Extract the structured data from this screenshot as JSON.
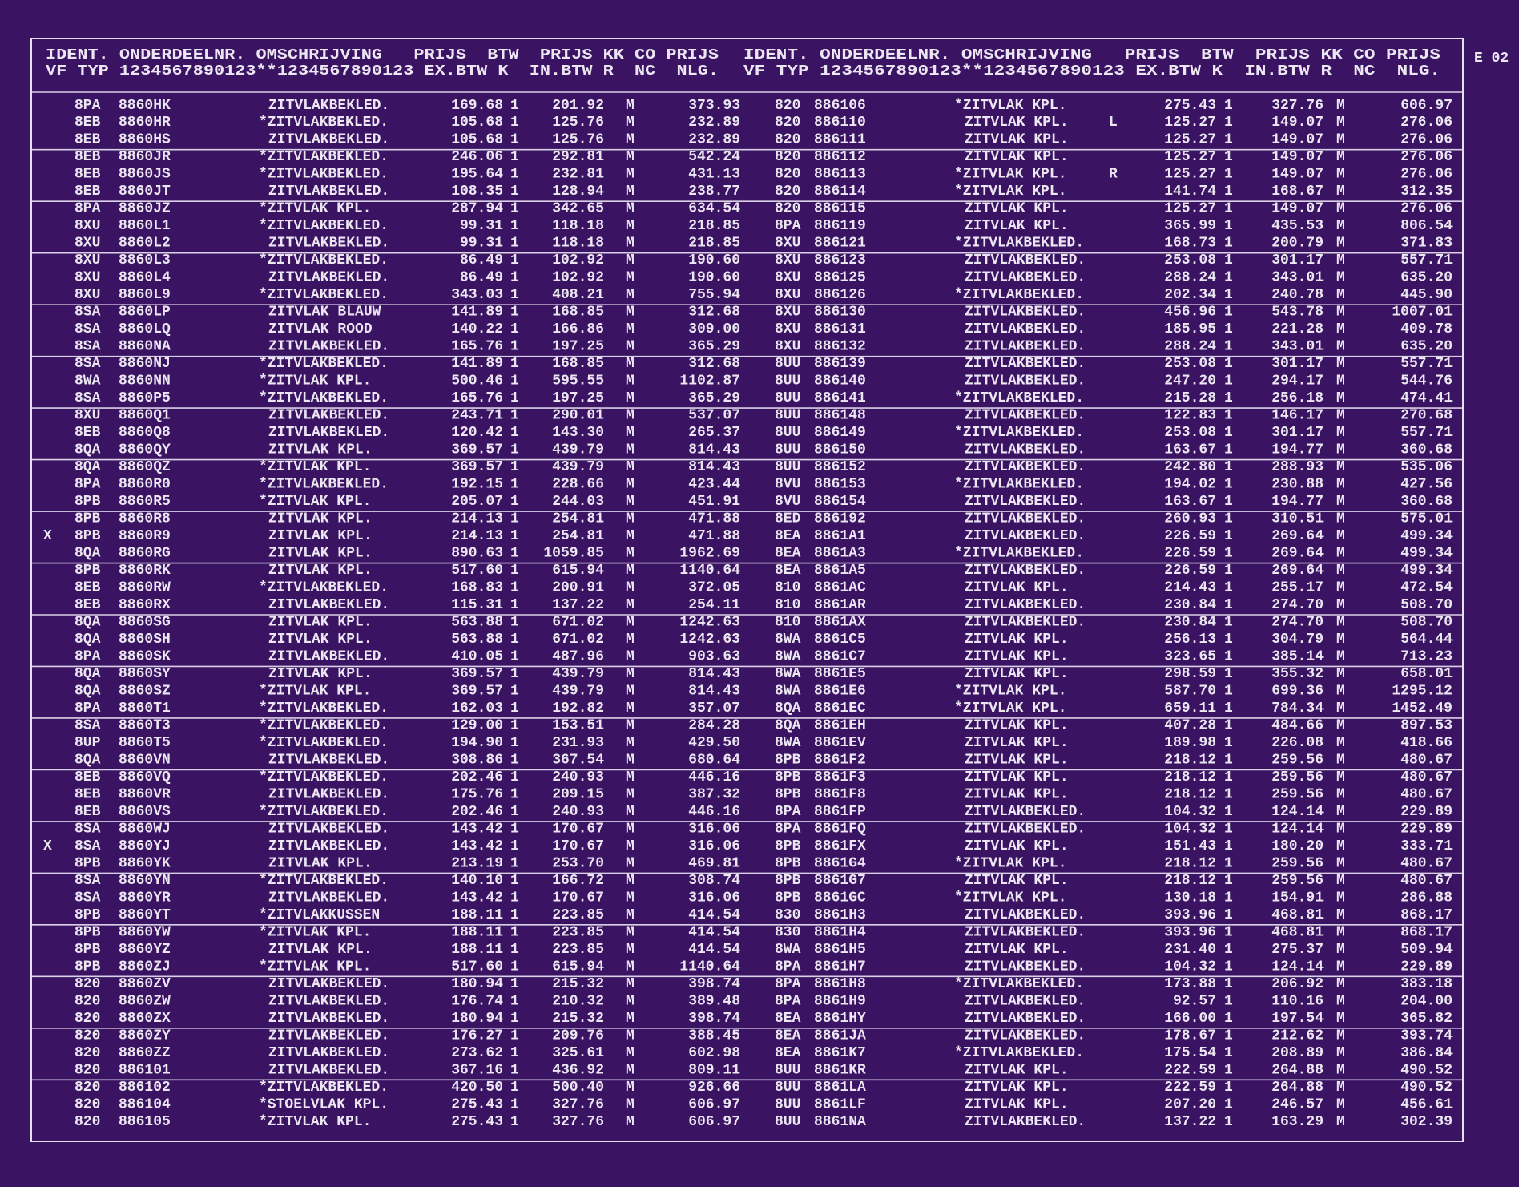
{
  "code": "E 02",
  "left": {
    "header": [
      "IDENT. ONDERDEELNR. OMSCHRIJVING   PRIJS  BTW  PRIJS KK CO PRIJS",
      "VF TYP 1234567890123**1234567890123 EX.BTW K  IN.BTW R  NC  NLG."
    ],
    "rows": [
      [
        "8PA",
        "8860HK",
        "ZITVLAKBEKLED.",
        "169.68",
        "1",
        "201.92",
        "M",
        "373.93"
      ],
      [
        "8EB",
        "8860HR",
        "*ZITVLAKBEKLED.",
        "105.68",
        "1",
        "125.76",
        "M",
        "232.89"
      ],
      [
        "8EB",
        "8860HS",
        "ZITVLAKBEKLED.",
        "105.68",
        "1",
        "125.76",
        "M",
        "232.89"
      ],
      [
        "8EB",
        "8860JR",
        "*ZITVLAKBEKLED.",
        "246.06",
        "1",
        "292.81",
        "M",
        "542.24"
      ],
      [
        "8EB",
        "8860JS",
        "*ZITVLAKBEKLED.",
        "195.64",
        "1",
        "232.81",
        "M",
        "431.13"
      ],
      [
        "8EB",
        "8860JT",
        "ZITVLAKBEKLED.",
        "108.35",
        "1",
        "128.94",
        "M",
        "238.77"
      ],
      [
        "8PA",
        "8860JZ",
        "*ZITVLAK KPL.",
        "287.94",
        "1",
        "342.65",
        "M",
        "634.54"
      ],
      [
        "8XU",
        "8860L1",
        "*ZITVLAKBEKLED.",
        "99.31",
        "1",
        "118.18",
        "M",
        "218.85"
      ],
      [
        "8XU",
        "8860L2",
        "ZITVLAKBEKLED.",
        "99.31",
        "1",
        "118.18",
        "M",
        "218.85"
      ],
      [
        "8XU",
        "8860L3",
        "*ZITVLAKBEKLED.",
        "86.49",
        "1",
        "102.92",
        "M",
        "190.60"
      ],
      [
        "8XU",
        "8860L4",
        "ZITVLAKBEKLED.",
        "86.49",
        "1",
        "102.92",
        "M",
        "190.60"
      ],
      [
        "8XU",
        "8860L9",
        "*ZITVLAKBEKLED.",
        "343.03",
        "1",
        "408.21",
        "M",
        "755.94"
      ],
      [
        "8SA",
        "8860LP",
        "ZITVLAK BLAUW",
        "141.89",
        "1",
        "168.85",
        "M",
        "312.68"
      ],
      [
        "8SA",
        "8860LQ",
        "ZITVLAK ROOD",
        "140.22",
        "1",
        "166.86",
        "M",
        "309.00"
      ],
      [
        "8SA",
        "8860NA",
        "ZITVLAKBEKLED.",
        "165.76",
        "1",
        "197.25",
        "M",
        "365.29"
      ],
      [
        "8SA",
        "8860NJ",
        "*ZITVLAKBEKLED.",
        "141.89",
        "1",
        "168.85",
        "M",
        "312.68"
      ],
      [
        "8WA",
        "8860NN",
        "*ZITVLAK KPL.",
        "500.46",
        "1",
        "595.55",
        "M",
        "1102.87"
      ],
      [
        "8SA",
        "8860P5",
        "*ZITVLAKBEKLED.",
        "165.76",
        "1",
        "197.25",
        "M",
        "365.29"
      ],
      [
        "8XU",
        "8860Q1",
        "ZITVLAKBEKLED.",
        "243.71",
        "1",
        "290.01",
        "M",
        "537.07"
      ],
      [
        "8EB",
        "8860Q8",
        "ZITVLAKBEKLED.",
        "120.42",
        "1",
        "143.30",
        "M",
        "265.37"
      ],
      [
        "8QA",
        "8860QY",
        "ZITVLAK KPL.",
        "369.57",
        "1",
        "439.79",
        "M",
        "814.43"
      ],
      [
        "8QA",
        "8860QZ",
        "*ZITVLAK KPL.",
        "369.57",
        "1",
        "439.79",
        "M",
        "814.43"
      ],
      [
        "8PA",
        "8860R0",
        "*ZITVLAKBEKLED.",
        "192.15",
        "1",
        "228.66",
        "M",
        "423.44"
      ],
      [
        "8PB",
        "8860R5",
        "*ZITVLAK KPL.",
        "205.07",
        "1",
        "244.03",
        "M",
        "451.91"
      ],
      [
        "8PB",
        "8860R8",
        "ZITVLAK KPL.",
        "214.13",
        "1",
        "254.81",
        "M",
        "471.88"
      ],
      [
        "8PB",
        "8860R9",
        "ZITVLAK KPL.",
        "214.13",
        "1",
        "254.81",
        "M",
        "471.88",
        "X"
      ],
      [
        "8QA",
        "8860RG",
        "ZITVLAK KPL.",
        "890.63",
        "1",
        "1059.85",
        "M",
        "1962.69"
      ],
      [
        "8PB",
        "8860RK",
        "ZITVLAK KPL.",
        "517.60",
        "1",
        "615.94",
        "M",
        "1140.64"
      ],
      [
        "8EB",
        "8860RW",
        "*ZITVLAKBEKLED.",
        "168.83",
        "1",
        "200.91",
        "M",
        "372.05"
      ],
      [
        "8EB",
        "8860RX",
        "ZITVLAKBEKLED.",
        "115.31",
        "1",
        "137.22",
        "M",
        "254.11"
      ],
      [
        "8QA",
        "8860SG",
        "ZITVLAK KPL.",
        "563.88",
        "1",
        "671.02",
        "M",
        "1242.63"
      ],
      [
        "8QA",
        "8860SH",
        "ZITVLAK KPL.",
        "563.88",
        "1",
        "671.02",
        "M",
        "1242.63"
      ],
      [
        "8PA",
        "8860SK",
        "ZITVLAKBEKLED.",
        "410.05",
        "1",
        "487.96",
        "M",
        "903.63"
      ],
      [
        "8QA",
        "8860SY",
        "ZITVLAK KPL.",
        "369.57",
        "1",
        "439.79",
        "M",
        "814.43"
      ],
      [
        "8QA",
        "8860SZ",
        "*ZITVLAK KPL.",
        "369.57",
        "1",
        "439.79",
        "M",
        "814.43"
      ],
      [
        "8PA",
        "8860T1",
        "*ZITVLAKBEKLED.",
        "162.03",
        "1",
        "192.82",
        "M",
        "357.07"
      ],
      [
        "8SA",
        "8860T3",
        "*ZITVLAKBEKLED.",
        "129.00",
        "1",
        "153.51",
        "M",
        "284.28"
      ],
      [
        "8UP",
        "8860T5",
        "*ZITVLAKBEKLED.",
        "194.90",
        "1",
        "231.93",
        "M",
        "429.50"
      ],
      [
        "8QA",
        "8860VN",
        "ZITVLAKBEKLED.",
        "308.86",
        "1",
        "367.54",
        "M",
        "680.64"
      ],
      [
        "8EB",
        "8860VQ",
        "*ZITVLAKBEKLED.",
        "202.46",
        "1",
        "240.93",
        "M",
        "446.16"
      ],
      [
        "8EB",
        "8860VR",
        "ZITVLAKBEKLED.",
        "175.76",
        "1",
        "209.15",
        "M",
        "387.32"
      ],
      [
        "8EB",
        "8860VS",
        "*ZITVLAKBEKLED.",
        "202.46",
        "1",
        "240.93",
        "M",
        "446.16"
      ],
      [
        "8SA",
        "8860WJ",
        "ZITVLAKBEKLED.",
        "143.42",
        "1",
        "170.67",
        "M",
        "316.06"
      ],
      [
        "8SA",
        "8860YJ",
        "ZITVLAKBEKLED.",
        "143.42",
        "1",
        "170.67",
        "M",
        "316.06",
        "X"
      ],
      [
        "8PB",
        "8860YK",
        "ZITVLAK KPL.",
        "213.19",
        "1",
        "253.70",
        "M",
        "469.81"
      ],
      [
        "8SA",
        "8860YN",
        "*ZITVLAKBEKLED.",
        "140.10",
        "1",
        "166.72",
        "M",
        "308.74"
      ],
      [
        "8SA",
        "8860YR",
        "ZITVLAKBEKLED.",
        "143.42",
        "1",
        "170.67",
        "M",
        "316.06"
      ],
      [
        "8PB",
        "8860YT",
        "*ZITVLAKKUSSEN",
        "188.11",
        "1",
        "223.85",
        "M",
        "414.54"
      ],
      [
        "8PB",
        "8860YW",
        "*ZITVLAK KPL.",
        "188.11",
        "1",
        "223.85",
        "M",
        "414.54"
      ],
      [
        "8PB",
        "8860YZ",
        "ZITVLAK KPL.",
        "188.11",
        "1",
        "223.85",
        "M",
        "414.54"
      ],
      [
        "8PB",
        "8860ZJ",
        "*ZITVLAK KPL.",
        "517.60",
        "1",
        "615.94",
        "M",
        "1140.64"
      ],
      [
        "820",
        "8860ZV",
        "ZITVLAKBEKLED.",
        "180.94",
        "1",
        "215.32",
        "M",
        "398.74"
      ],
      [
        "820",
        "8860ZW",
        "ZITVLAKBEKLED.",
        "176.74",
        "1",
        "210.32",
        "M",
        "389.48"
      ],
      [
        "820",
        "8860ZX",
        "ZITVLAKBEKLED.",
        "180.94",
        "1",
        "215.32",
        "M",
        "398.74"
      ],
      [
        "820",
        "8860ZY",
        "ZITVLAKBEKLED.",
        "176.27",
        "1",
        "209.76",
        "M",
        "388.45"
      ],
      [
        "820",
        "8860ZZ",
        "ZITVLAKBEKLED.",
        "273.62",
        "1",
        "325.61",
        "M",
        "602.98"
      ],
      [
        "820",
        "886101",
        "ZITVLAKBEKLED.",
        "367.16",
        "1",
        "436.92",
        "M",
        "809.11"
      ],
      [
        "820",
        "886102",
        "*ZITVLAKBEKLED.",
        "420.50",
        "1",
        "500.40",
        "M",
        "926.66"
      ],
      [
        "820",
        "886104",
        "*STOELVLAK KPL.",
        "275.43",
        "1",
        "327.76",
        "M",
        "606.97"
      ],
      [
        "820",
        "886105",
        "*ZITVLAK KPL.",
        "275.43",
        "1",
        "327.76",
        "M",
        "606.97"
      ]
    ]
  },
  "right": {
    "header": [
      "IDENT. ONDERDEELNR. OMSCHRIJVING   PRIJS  BTW  PRIJS KK CO PRIJS",
      "VF TYP 1234567890123**1234567890123 EX.BTW K  IN.BTW R  NC  NLG."
    ],
    "rows": [
      [
        "820",
        "886106",
        "*ZITVLAK KPL.",
        "275.43",
        "1",
        "327.76",
        "M",
        "606.97"
      ],
      [
        "820",
        "886110",
        "ZITVLAK KPL.",
        "125.27",
        "1",
        "149.07",
        "M",
        "276.06",
        "L"
      ],
      [
        "820",
        "886111",
        "ZITVLAK KPL.",
        "125.27",
        "1",
        "149.07",
        "M",
        "276.06"
      ],
      [
        "820",
        "886112",
        "ZITVLAK KPL.",
        "125.27",
        "1",
        "149.07",
        "M",
        "276.06"
      ],
      [
        "820",
        "886113",
        "*ZITVLAK KPL.",
        "125.27",
        "1",
        "149.07",
        "M",
        "276.06",
        "R"
      ],
      [
        "820",
        "886114",
        "*ZITVLAK KPL.",
        "141.74",
        "1",
        "168.67",
        "M",
        "312.35"
      ],
      [
        "820",
        "886115",
        "ZITVLAK KPL.",
        "125.27",
        "1",
        "149.07",
        "M",
        "276.06"
      ],
      [
        "8PA",
        "886119",
        "ZITVLAK KPL.",
        "365.99",
        "1",
        "435.53",
        "M",
        "806.54"
      ],
      [
        "8XU",
        "886121",
        "*ZITVLAKBEKLED.",
        "168.73",
        "1",
        "200.79",
        "M",
        "371.83"
      ],
      [
        "8XU",
        "886123",
        "ZITVLAKBEKLED.",
        "253.08",
        "1",
        "301.17",
        "M",
        "557.71"
      ],
      [
        "8XU",
        "886125",
        "ZITVLAKBEKLED.",
        "288.24",
        "1",
        "343.01",
        "M",
        "635.20"
      ],
      [
        "8XU",
        "886126",
        "*ZITVLAKBEKLED.",
        "202.34",
        "1",
        "240.78",
        "M",
        "445.90"
      ],
      [
        "8XU",
        "886130",
        "ZITVLAKBEKLED.",
        "456.96",
        "1",
        "543.78",
        "M",
        "1007.01"
      ],
      [
        "8XU",
        "886131",
        "ZITVLAKBEKLED.",
        "185.95",
        "1",
        "221.28",
        "M",
        "409.78"
      ],
      [
        "8XU",
        "886132",
        "ZITVLAKBEKLED.",
        "288.24",
        "1",
        "343.01",
        "M",
        "635.20"
      ],
      [
        "8UU",
        "886139",
        "ZITVLAKBEKLED.",
        "253.08",
        "1",
        "301.17",
        "M",
        "557.71"
      ],
      [
        "8UU",
        "886140",
        "ZITVLAKBEKLED.",
        "247.20",
        "1",
        "294.17",
        "M",
        "544.76"
      ],
      [
        "8UU",
        "886141",
        "*ZITVLAKBEKLED.",
        "215.28",
        "1",
        "256.18",
        "M",
        "474.41"
      ],
      [
        "8UU",
        "886148",
        "ZITVLAKBEKLED.",
        "122.83",
        "1",
        "146.17",
        "M",
        "270.68"
      ],
      [
        "8UU",
        "886149",
        "*ZITVLAKBEKLED.",
        "253.08",
        "1",
        "301.17",
        "M",
        "557.71"
      ],
      [
        "8UU",
        "886150",
        "ZITVLAKBEKLED.",
        "163.67",
        "1",
        "194.77",
        "M",
        "360.68"
      ],
      [
        "8UU",
        "886152",
        "ZITVLAKBEKLED.",
        "242.80",
        "1",
        "288.93",
        "M",
        "535.06"
      ],
      [
        "8VU",
        "886153",
        "*ZITVLAKBEKLED.",
        "194.02",
        "1",
        "230.88",
        "M",
        "427.56"
      ],
      [
        "8VU",
        "886154",
        "ZITVLAKBEKLED.",
        "163.67",
        "1",
        "194.77",
        "M",
        "360.68"
      ],
      [
        "8ED",
        "886192",
        "ZITVLAKBEKLED.",
        "260.93",
        "1",
        "310.51",
        "M",
        "575.01"
      ],
      [
        "8EA",
        "8861A1",
        "ZITVLAKBEKLED.",
        "226.59",
        "1",
        "269.64",
        "M",
        "499.34"
      ],
      [
        "8EA",
        "8861A3",
        "*ZITVLAKBEKLED.",
        "226.59",
        "1",
        "269.64",
        "M",
        "499.34"
      ],
      [
        "8EA",
        "8861A5",
        "ZITVLAKBEKLED.",
        "226.59",
        "1",
        "269.64",
        "M",
        "499.34"
      ],
      [
        "810",
        "8861AC",
        "ZITVLAK KPL.",
        "214.43",
        "1",
        "255.17",
        "M",
        "472.54"
      ],
      [
        "810",
        "8861AR",
        "ZITVLAKBEKLED.",
        "230.84",
        "1",
        "274.70",
        "M",
        "508.70"
      ],
      [
        "810",
        "8861AX",
        "ZITVLAKBEKLED.",
        "230.84",
        "1",
        "274.70",
        "M",
        "508.70"
      ],
      [
        "8WA",
        "8861C5",
        "ZITVLAK KPL.",
        "256.13",
        "1",
        "304.79",
        "M",
        "564.44"
      ],
      [
        "8WA",
        "8861C7",
        "ZITVLAK KPL.",
        "323.65",
        "1",
        "385.14",
        "M",
        "713.23"
      ],
      [
        "8WA",
        "8861E5",
        "ZITVLAK KPL.",
        "298.59",
        "1",
        "355.32",
        "M",
        "658.01"
      ],
      [
        "8WA",
        "8861E6",
        "*ZITVLAK KPL.",
        "587.70",
        "1",
        "699.36",
        "M",
        "1295.12"
      ],
      [
        "8QA",
        "8861EC",
        "*ZITVLAK KPL.",
        "659.11",
        "1",
        "784.34",
        "M",
        "1452.49"
      ],
      [
        "8QA",
        "8861EH",
        "ZITVLAK KPL.",
        "407.28",
        "1",
        "484.66",
        "M",
        "897.53"
      ],
      [
        "8WA",
        "8861EV",
        "ZITVLAK KPL.",
        "189.98",
        "1",
        "226.08",
        "M",
        "418.66"
      ],
      [
        "8PB",
        "8861F2",
        "ZITVLAK KPL.",
        "218.12",
        "1",
        "259.56",
        "M",
        "480.67"
      ],
      [
        "8PB",
        "8861F3",
        "ZITVLAK KPL.",
        "218.12",
        "1",
        "259.56",
        "M",
        "480.67"
      ],
      [
        "8PB",
        "8861F8",
        "ZITVLAK KPL.",
        "218.12",
        "1",
        "259.56",
        "M",
        "480.67"
      ],
      [
        "8PA",
        "8861FP",
        "ZITVLAKBEKLED.",
        "104.32",
        "1",
        "124.14",
        "M",
        "229.89"
      ],
      [
        "8PA",
        "8861FQ",
        "ZITVLAKBEKLED.",
        "104.32",
        "1",
        "124.14",
        "M",
        "229.89"
      ],
      [
        "8PB",
        "8861FX",
        "ZITVLAK KPL.",
        "151.43",
        "1",
        "180.20",
        "M",
        "333.71"
      ],
      [
        "8PB",
        "8861G4",
        "*ZITVLAK KPL.",
        "218.12",
        "1",
        "259.56",
        "M",
        "480.67"
      ],
      [
        "8PB",
        "8861G7",
        "ZITVLAK KPL.",
        "218.12",
        "1",
        "259.56",
        "M",
        "480.67"
      ],
      [
        "8PB",
        "8861GC",
        "*ZITVLAK KPL.",
        "130.18",
        "1",
        "154.91",
        "M",
        "286.88"
      ],
      [
        "830",
        "8861H3",
        "ZITVLAKBEKLED.",
        "393.96",
        "1",
        "468.81",
        "M",
        "868.17"
      ],
      [
        "830",
        "8861H4",
        "ZITVLAKBEKLED.",
        "393.96",
        "1",
        "468.81",
        "M",
        "868.17"
      ],
      [
        "8WA",
        "8861H5",
        "ZITVLAK KPL.",
        "231.40",
        "1",
        "275.37",
        "M",
        "509.94"
      ],
      [
        "8PA",
        "8861H7",
        "ZITVLAKBEKLED.",
        "104.32",
        "1",
        "124.14",
        "M",
        "229.89"
      ],
      [
        "8PA",
        "8861H8",
        "*ZITVLAKBEKLED.",
        "173.88",
        "1",
        "206.92",
        "M",
        "383.18"
      ],
      [
        "8PA",
        "8861H9",
        "ZITVLAKBEKLED.",
        "92.57",
        "1",
        "110.16",
        "M",
        "204.00"
      ],
      [
        "8EA",
        "8861HY",
        "ZITVLAKBEKLED.",
        "166.00",
        "1",
        "197.54",
        "M",
        "365.82"
      ],
      [
        "8EA",
        "8861JA",
        "ZITVLAKBEKLED.",
        "178.67",
        "1",
        "212.62",
        "M",
        "393.74"
      ],
      [
        "8EA",
        "8861K7",
        "*ZITVLAKBEKLED.",
        "175.54",
        "1",
        "208.89",
        "M",
        "386.84"
      ],
      [
        "8UU",
        "8861KR",
        "ZITVLAK KPL.",
        "222.59",
        "1",
        "264.88",
        "M",
        "490.52"
      ],
      [
        "8UU",
        "8861LA",
        "ZITVLAK KPL.",
        "222.59",
        "1",
        "264.88",
        "M",
        "490.52"
      ],
      [
        "8UU",
        "8861LF",
        "ZITVLAK KPL.",
        "207.20",
        "1",
        "246.57",
        "M",
        "456.61"
      ],
      [
        "8UU",
        "8861NA",
        "ZITVLAKBEKLED.",
        "137.22",
        "1",
        "163.29",
        "M",
        "302.39"
      ]
    ]
  }
}
